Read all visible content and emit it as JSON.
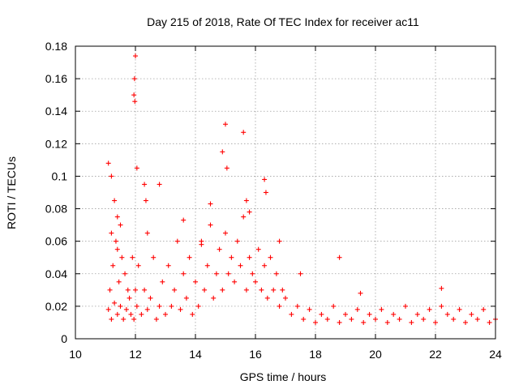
{
  "chart_data": {
    "type": "scatter",
    "title": "Day 215 of 2018, Rate Of TEC Index for receiver ac11",
    "xlabel": "GPS time / hours",
    "ylabel": "ROTI / TECUs",
    "xlim": [
      10,
      24
    ],
    "ylim": [
      0,
      0.18
    ],
    "x_ticks": [
      "10",
      "12",
      "14",
      "16",
      "18",
      "20",
      "22",
      "24"
    ],
    "y_ticks": [
      "0",
      "0.02",
      "0.04",
      "0.06",
      "0.08",
      "0.1",
      "0.12",
      "0.14",
      "0.16",
      "0.18"
    ],
    "grid": true,
    "marker": "plus",
    "series_color": "#ff0000",
    "series": [
      {
        "x": [
          11.1,
          11.15,
          11.2,
          11.25,
          11.3,
          11.35,
          11.4,
          11.45,
          11.5,
          11.55,
          11.6,
          11.65,
          11.7,
          11.75,
          11.8,
          11.85,
          11.9,
          11.95,
          12.0,
          12.05,
          12.1,
          12.2,
          12.3,
          12.4,
          12.5,
          12.6,
          12.7,
          12.8,
          12.9,
          13.0,
          13.1,
          13.2,
          13.3,
          13.4,
          13.5,
          13.6,
          13.7,
          13.8,
          13.9,
          14.0,
          14.1,
          14.2,
          14.3,
          14.4,
          14.5,
          14.6,
          14.7,
          14.8,
          14.9,
          15.0,
          15.1,
          15.2,
          15.3,
          15.4,
          15.5,
          15.6,
          15.7,
          15.8,
          15.9,
          16.0,
          16.1,
          16.2,
          16.3,
          16.4,
          16.5,
          16.6,
          16.7,
          16.8,
          16.9,
          17.0,
          17.2,
          17.4,
          17.6,
          17.8,
          18.0,
          18.2,
          18.4,
          18.6,
          18.8,
          19.0,
          19.2,
          19.4,
          19.6,
          19.8,
          20.0,
          20.2,
          20.4,
          20.6,
          20.8,
          21.0,
          21.2,
          21.4,
          21.6,
          21.8,
          22.0,
          22.2,
          22.4,
          22.6,
          22.8,
          23.0,
          23.2,
          23.4,
          23.6,
          23.8,
          24.0,
          11.1,
          11.2,
          11.3,
          11.4,
          11.5,
          11.95,
          11.97,
          12.0,
          11.98,
          12.05,
          12.3,
          12.35,
          12.8,
          13.6,
          14.5,
          14.9,
          15.0,
          15.05,
          15.6,
          15.7,
          15.8,
          16.3,
          16.35,
          11.2,
          11.4,
          12.4,
          14.2,
          16.8,
          17.5,
          18.8,
          19.5,
          22.2
        ],
        "y": [
          0.018,
          0.03,
          0.012,
          0.045,
          0.022,
          0.06,
          0.015,
          0.035,
          0.02,
          0.05,
          0.012,
          0.04,
          0.018,
          0.03,
          0.025,
          0.015,
          0.05,
          0.012,
          0.03,
          0.02,
          0.045,
          0.015,
          0.03,
          0.018,
          0.025,
          0.05,
          0.012,
          0.02,
          0.035,
          0.015,
          0.045,
          0.02,
          0.03,
          0.06,
          0.018,
          0.04,
          0.025,
          0.05,
          0.015,
          0.035,
          0.02,
          0.06,
          0.03,
          0.045,
          0.07,
          0.025,
          0.04,
          0.055,
          0.03,
          0.065,
          0.04,
          0.05,
          0.035,
          0.06,
          0.045,
          0.075,
          0.03,
          0.05,
          0.04,
          0.035,
          0.055,
          0.03,
          0.045,
          0.025,
          0.05,
          0.03,
          0.04,
          0.02,
          0.03,
          0.025,
          0.015,
          0.02,
          0.012,
          0.018,
          0.01,
          0.015,
          0.012,
          0.02,
          0.01,
          0.015,
          0.012,
          0.018,
          0.01,
          0.015,
          0.012,
          0.018,
          0.01,
          0.015,
          0.012,
          0.02,
          0.01,
          0.015,
          0.012,
          0.018,
          0.01,
          0.02,
          0.015,
          0.012,
          0.018,
          0.01,
          0.015,
          0.012,
          0.018,
          0.01,
          0.012,
          0.108,
          0.1,
          0.085,
          0.075,
          0.07,
          0.15,
          0.16,
          0.174,
          0.146,
          0.105,
          0.095,
          0.085,
          0.095,
          0.073,
          0.083,
          0.115,
          0.132,
          0.105,
          0.127,
          0.085,
          0.078,
          0.098,
          0.09,
          0.065,
          0.055,
          0.065,
          0.058,
          0.06,
          0.04,
          0.05,
          0.028,
          0.031
        ]
      }
    ]
  }
}
